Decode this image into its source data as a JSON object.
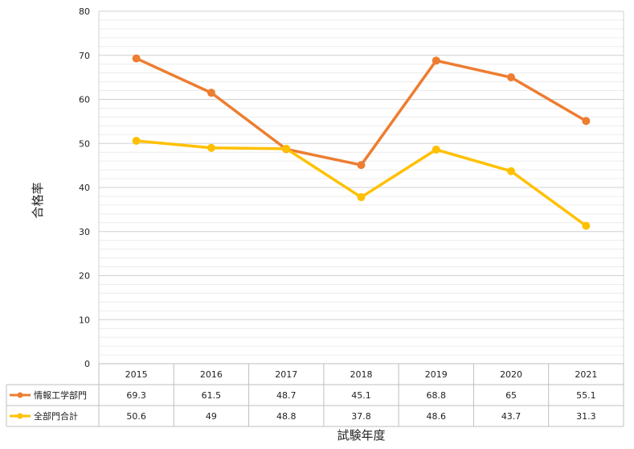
{
  "chart_data": {
    "type": "line",
    "categories": [
      "2015",
      "2016",
      "2017",
      "2018",
      "2019",
      "2020",
      "2021"
    ],
    "series": [
      {
        "name": "情報工学部門",
        "values": [
          69.3,
          61.5,
          48.7,
          45.1,
          68.8,
          65,
          55.1
        ],
        "labels": [
          "69.3",
          "61.5",
          "48.7",
          "45.1",
          "68.8",
          "65",
          "55.1"
        ],
        "color": "#ED7D31"
      },
      {
        "name": "全部門合計",
        "values": [
          50.6,
          49,
          48.8,
          37.8,
          48.6,
          43.7,
          31.3
        ],
        "labels": [
          "50.6",
          "49",
          "48.8",
          "37.8",
          "48.6",
          "43.7",
          "31.3"
        ],
        "color": "#FFC000"
      }
    ],
    "ylim": [
      0,
      80
    ],
    "yticks": [
      "0",
      "10",
      "20",
      "30",
      "40",
      "50",
      "60",
      "70",
      "80"
    ],
    "ylabel": "合格率",
    "xlabel": "試験年度",
    "grid": true,
    "legend": "data-table"
  }
}
